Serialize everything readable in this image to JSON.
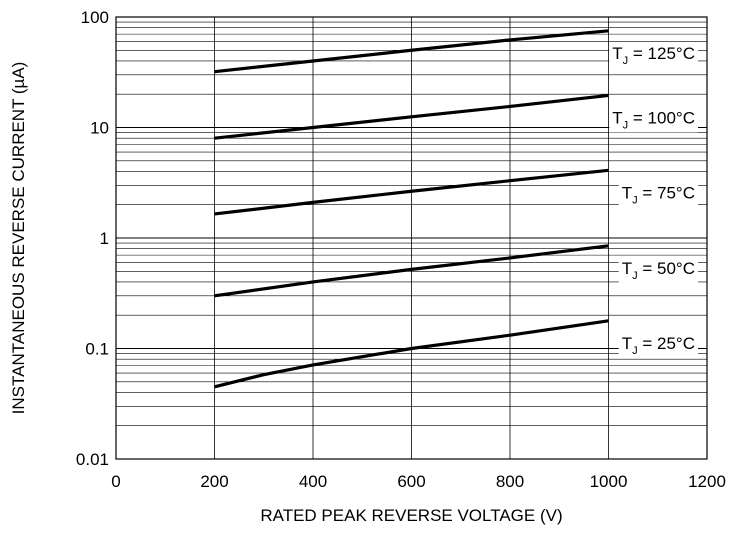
{
  "chart_data": {
    "type": "line",
    "title": "",
    "xlabel": "RATED PEAK REVERSE VOLTAGE (V)",
    "ylabel": "INSTANTANEOUS REVERSE CURRENT (µA)",
    "xlim": [
      0,
      1200
    ],
    "ylim": [
      0.01,
      100
    ],
    "yscale": "log",
    "grid": true,
    "legend": "inline labels at right end of each curve",
    "x_ticks": [
      0,
      200,
      400,
      600,
      800,
      1000,
      1200
    ],
    "x_tick_labels": [
      "0",
      "200",
      "400",
      "600",
      "800",
      "1000",
      "1200"
    ],
    "y_ticks": [
      0.01,
      0.1,
      1,
      10,
      100
    ],
    "y_tick_labels": [
      "0.01",
      "0.1",
      "1",
      "10",
      "100"
    ],
    "colors": {
      "line": "#000000",
      "grid": "#000000",
      "background": "#ffffff"
    },
    "series": [
      {
        "name": "T J = 125°C",
        "label_main": "T",
        "label_sub": "J",
        "label_rest": " = 125°C",
        "x": [
          200,
          400,
          600,
          800,
          1000
        ],
        "y": [
          32,
          40,
          50,
          62,
          75
        ]
      },
      {
        "name": "T J = 100°C",
        "label_main": "T",
        "label_sub": "J",
        "label_rest": " = 100°C",
        "x": [
          200,
          400,
          600,
          800,
          1000
        ],
        "y": [
          8,
          10,
          12.5,
          15.5,
          19.5
        ]
      },
      {
        "name": "T J = 75°C",
        "label_main": "T",
        "label_sub": "J",
        "label_rest": " = 75°C",
        "x": [
          200,
          400,
          600,
          800,
          1000
        ],
        "y": [
          1.65,
          2.1,
          2.65,
          3.3,
          4.1
        ]
      },
      {
        "name": "T J = 50°C",
        "label_main": "T",
        "label_sub": "J",
        "label_rest": " = 50°C",
        "x": [
          200,
          400,
          600,
          800,
          1000
        ],
        "y": [
          0.3,
          0.4,
          0.52,
          0.66,
          0.85
        ]
      },
      {
        "name": "T J = 25°C",
        "label_main": "T",
        "label_sub": "J",
        "label_rest": " = 25°C",
        "x": [
          200,
          300,
          400,
          600,
          800,
          1000
        ],
        "y": [
          0.045,
          0.058,
          0.071,
          0.1,
          0.132,
          0.178
        ]
      }
    ]
  }
}
